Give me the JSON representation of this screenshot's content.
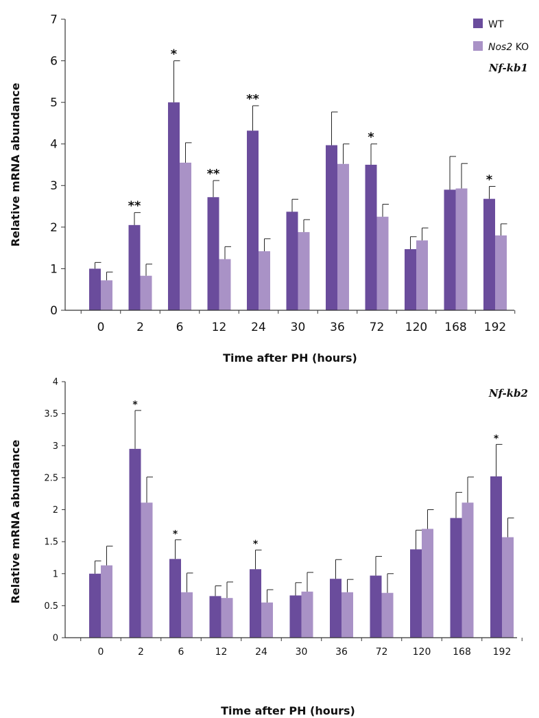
{
  "legend": {
    "wt": {
      "label": "WT",
      "color": "#6a4c9c"
    },
    "ko": {
      "label_italic": "Nos2",
      "label_rest": " KO",
      "color": "#a992c6"
    }
  },
  "chart_data": [
    {
      "type": "bar",
      "gene_label": "Nf-kb1",
      "xlabel": "Time after PH (hours)",
      "ylabel": "Relative mRNA abundance",
      "ylim": [
        0,
        7
      ],
      "yticks": [
        "0",
        "1",
        "2",
        "3",
        "4",
        "5",
        "6",
        "7"
      ],
      "categories": [
        "0",
        "2",
        "6",
        "12",
        "24",
        "30",
        "36",
        "72",
        "120",
        "168",
        "192"
      ],
      "series": [
        {
          "name": "WT",
          "values": [
            1.0,
            2.05,
            5.0,
            2.72,
            4.32,
            2.37,
            3.97,
            3.5,
            1.47,
            2.9,
            2.68
          ],
          "errors": [
            0.15,
            0.3,
            1.0,
            0.4,
            0.6,
            0.3,
            0.8,
            0.5,
            0.3,
            0.8,
            0.3
          ]
        },
        {
          "name": "Nos2 KO",
          "values": [
            0.72,
            0.83,
            3.55,
            1.23,
            1.42,
            1.88,
            3.52,
            2.25,
            1.68,
            2.93,
            1.8
          ],
          "errors": [
            0.2,
            0.28,
            0.48,
            0.3,
            0.3,
            0.3,
            0.48,
            0.3,
            0.3,
            0.6,
            0.28
          ]
        }
      ],
      "annotations": [
        "",
        "**",
        "*",
        "**",
        "**",
        "",
        "",
        "*",
        "",
        "",
        "*"
      ]
    },
    {
      "type": "bar",
      "gene_label": "Nf-kb2",
      "xlabel": "Time after PH (hours)",
      "ylabel": "Relative mRNA abundance",
      "ylim": [
        0,
        4
      ],
      "yticks": [
        "0",
        "0.5",
        "1",
        "1.5",
        "2",
        "2.5",
        "3",
        "3.5",
        "4"
      ],
      "categories": [
        "0",
        "2",
        "6",
        "12",
        "24",
        "30",
        "36",
        "72",
        "120",
        "168",
        "192"
      ],
      "series": [
        {
          "name": "WT",
          "values": [
            1.0,
            2.95,
            1.23,
            0.65,
            1.07,
            0.66,
            0.92,
            0.97,
            1.38,
            1.87,
            2.52
          ],
          "errors": [
            0.2,
            0.6,
            0.3,
            0.16,
            0.3,
            0.2,
            0.3,
            0.3,
            0.3,
            0.4,
            0.5
          ]
        },
        {
          "name": "Nos2 KO",
          "values": [
            1.13,
            2.11,
            0.71,
            0.62,
            0.55,
            0.72,
            0.71,
            0.7,
            1.7,
            2.11,
            1.57
          ],
          "errors": [
            0.3,
            0.4,
            0.3,
            0.25,
            0.2,
            0.3,
            0.2,
            0.3,
            0.3,
            0.4,
            0.3
          ]
        }
      ],
      "annotations": [
        "",
        "*",
        "*",
        "",
        "*",
        "",
        "",
        "",
        "",
        "",
        "*"
      ]
    }
  ]
}
